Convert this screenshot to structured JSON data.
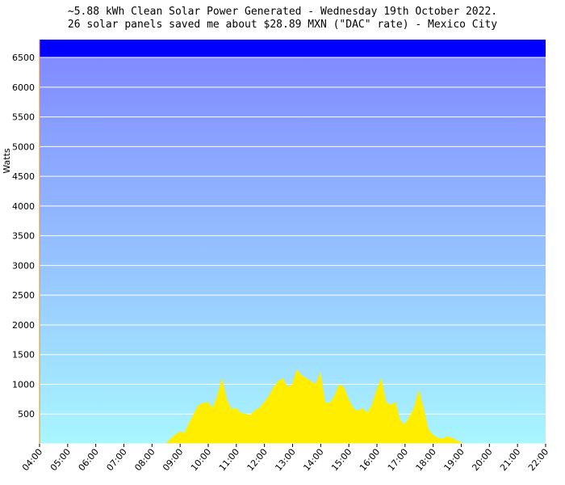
{
  "chart_data": {
    "type": "area",
    "title": "~5.88 kWh Clean Solar Power Generated - Wednesday 19th October 2022.",
    "subtitle": "26 solar panels saved me about $28.89 MXN (\"DAC\" rate) - Mexico City",
    "xlabel": "",
    "ylabel": "Watts",
    "xlim": [
      "04:00",
      "22:00"
    ],
    "ylim": [
      0,
      6800
    ],
    "x_ticks": [
      "04:00",
      "05:00",
      "06:00",
      "07:00",
      "08:00",
      "09:00",
      "10:00",
      "11:00",
      "12:00",
      "13:00",
      "14:00",
      "15:00",
      "16:00",
      "17:00",
      "18:00",
      "19:00",
      "20:00",
      "21:00",
      "22:00"
    ],
    "y_ticks": [
      500,
      1000,
      1500,
      2000,
      2500,
      3000,
      3500,
      4000,
      4500,
      5000,
      5500,
      6000,
      6500
    ],
    "grid": true,
    "background_gradient": [
      "#7f86ff",
      "#a8f6ff"
    ],
    "cap_band_color": "#0000ff",
    "cap_band_from": 6500,
    "fill_color": "#ffee00",
    "series": [
      {
        "x": [
          "08:30",
          "08:40",
          "08:50",
          "09:00",
          "09:10",
          "09:20",
          "09:30",
          "09:40",
          "09:50",
          "10:00",
          "10:10",
          "10:20",
          "10:30",
          "10:40",
          "10:50",
          "11:00",
          "11:10",
          "11:20",
          "11:30",
          "11:40",
          "11:50",
          "12:00",
          "12:10",
          "12:20",
          "12:30",
          "12:40",
          "12:50",
          "13:00",
          "13:10",
          "13:20",
          "13:30",
          "13:40",
          "13:50",
          "14:00",
          "14:10",
          "14:20",
          "14:30",
          "14:40",
          "14:50",
          "15:00",
          "15:10",
          "15:20",
          "15:30",
          "15:40",
          "15:50",
          "16:00",
          "16:10",
          "16:20",
          "16:30",
          "16:40",
          "16:50",
          "17:00",
          "17:10",
          "17:20",
          "17:30",
          "17:40",
          "17:50",
          "18:00",
          "18:10",
          "18:20",
          "18:30",
          "18:40",
          "18:50",
          "19:00",
          "19:10"
        ],
        "values": [
          0,
          80,
          150,
          200,
          180,
          350,
          500,
          650,
          680,
          700,
          600,
          800,
          1100,
          750,
          580,
          600,
          520,
          500,
          480,
          560,
          600,
          700,
          800,
          950,
          1050,
          1100,
          950,
          1000,
          1250,
          1150,
          1100,
          1050,
          1000,
          1200,
          700,
          680,
          800,
          1000,
          950,
          750,
          600,
          550,
          600,
          520,
          650,
          900,
          1100,
          700,
          650,
          700,
          400,
          320,
          450,
          600,
          900,
          600,
          250,
          150,
          100,
          80,
          120,
          100,
          60,
          20,
          0
        ]
      }
    ]
  }
}
